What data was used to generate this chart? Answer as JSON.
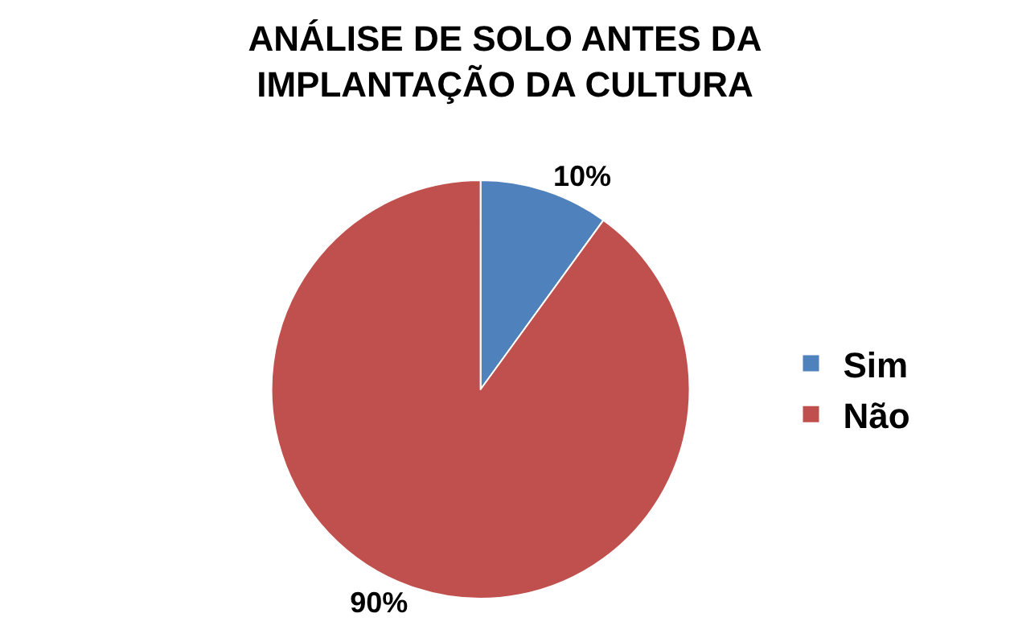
{
  "chart_data": {
    "type": "pie",
    "title": "ANÁLISE DE SOLO ANTES DA\nIMPLANTAÇÃO DA CULTURA",
    "categories": [
      "Sim",
      "Não"
    ],
    "values": [
      10,
      90
    ],
    "colors": [
      "#4f81bd",
      "#c0504d"
    ],
    "value_labels": [
      "10%",
      "90%"
    ],
    "legend": "right"
  }
}
